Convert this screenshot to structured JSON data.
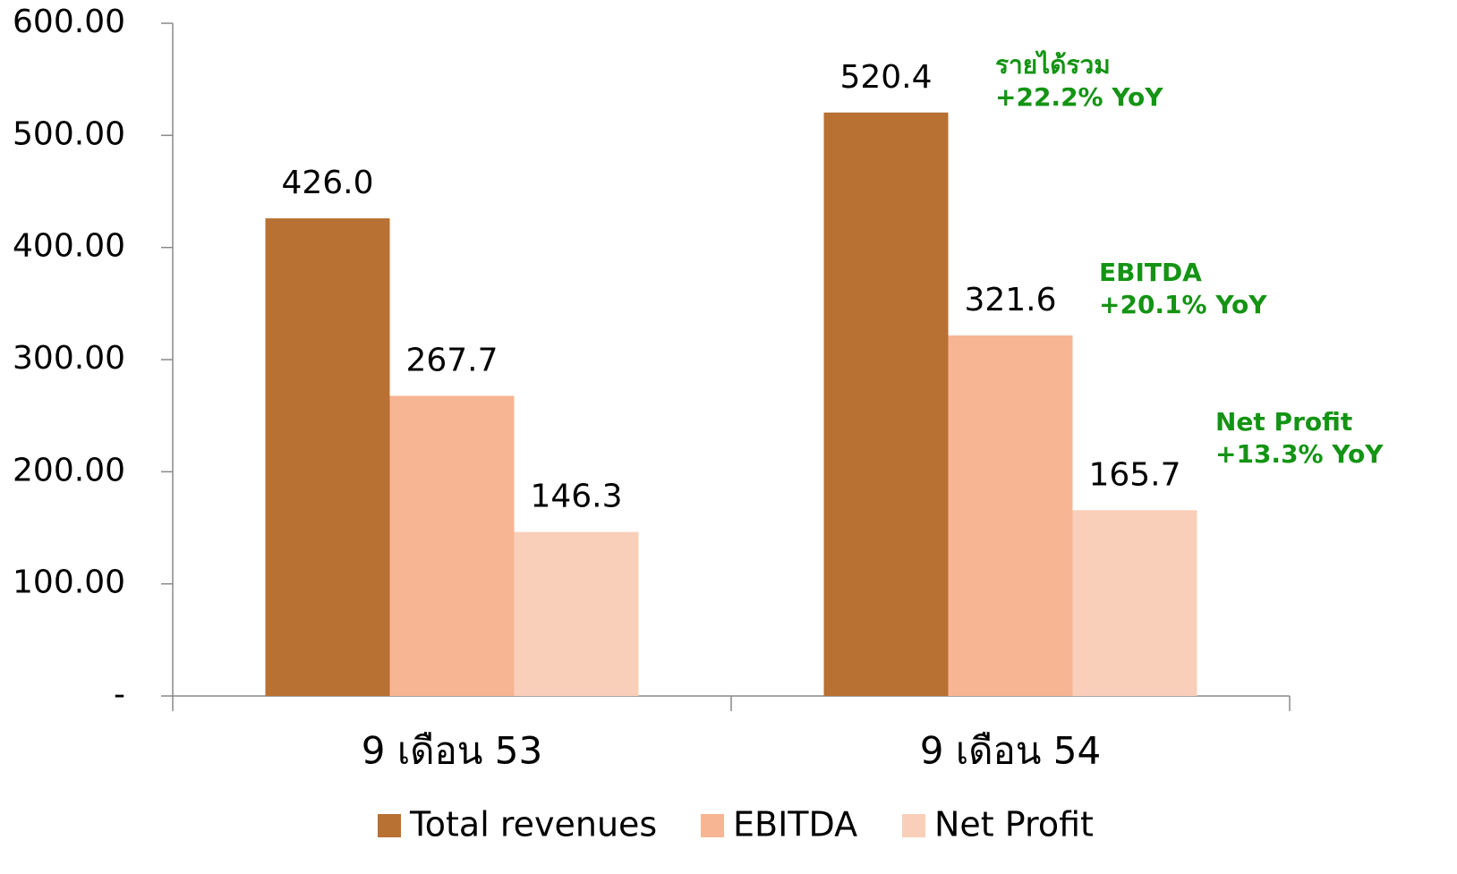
{
  "chart_data": {
    "type": "bar",
    "categories": [
      "9 เดือน 53",
      "9 เดือน 54"
    ],
    "series": [
      {
        "name": "Total revenues",
        "color": "#b87033",
        "values": [
          426.0,
          520.4
        ],
        "value_labels": [
          "426.0",
          "520.4"
        ]
      },
      {
        "name": "EBITDA",
        "color": "#f7b594",
        "values": [
          267.7,
          321.6
        ],
        "value_labels": [
          "267.7",
          "321.6"
        ]
      },
      {
        "name": "Net Profit",
        "color": "#f9cfba",
        "values": [
          146.3,
          165.7
        ],
        "value_labels": [
          "146.3",
          "165.7"
        ]
      }
    ],
    "ylim": [
      0,
      600
    ],
    "yticks": [
      {
        "value": 0,
        "label": "-"
      },
      {
        "value": 100,
        "label": "100.00"
      },
      {
        "value": 200,
        "label": "200.00"
      },
      {
        "value": 300,
        "label": "300.00"
      },
      {
        "value": 400,
        "label": "400.00"
      },
      {
        "value": 500,
        "label": "500.00"
      },
      {
        "value": 600,
        "label": "600.00"
      }
    ],
    "grid": false,
    "legend": "bottom",
    "annotations": [
      {
        "lines": [
          "รายได้รวม",
          "+22.2% YoY"
        ]
      },
      {
        "lines": [
          "EBITDA",
          "+20.1% YoY"
        ]
      },
      {
        "lines": [
          "Net Profit",
          "+13.3% YoY"
        ]
      }
    ]
  }
}
